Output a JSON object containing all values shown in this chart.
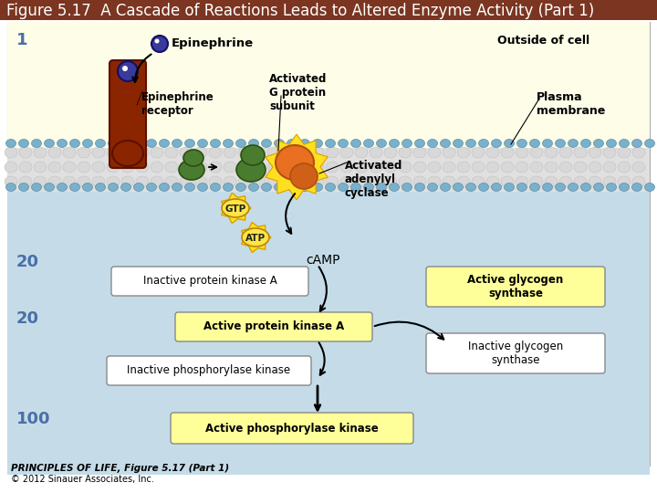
{
  "title": "Figure 5.17  A Cascade of Reactions Leads to Altered Enzyme Activity (Part 1)",
  "title_bg": "#7B3520",
  "title_color": "#FFFFFF",
  "title_fontsize": 12,
  "fig_bg": "#FFFFFF",
  "outside_bg": "#FDFDE8",
  "inside_bg": "#C5DCE8",
  "membrane_color": "#D0D0D0",
  "label_outside_cell": "Outside of cell",
  "label_plasma_membrane": "Plasma\nmembrane",
  "label_epinephrine": "Epinephrine",
  "label_ep_receptor": "Epinephrine\nreceptor",
  "label_activated_g": "Activated\nG protein\nsubunit",
  "label_activated_adenylyl": "Activated\nadenylyl\ncyclase",
  "label_gtp": "GTP",
  "label_atp": "ATP",
  "label_camp": "cAMP",
  "label_inactive_pka": "Inactive protein kinase A",
  "label_active_pka": "Active protein kinase A",
  "label_inactive_pk": "Inactive phosphorylase kinase",
  "label_active_pk": "Active phosphorylase kinase",
  "label_active_gs": "Active glycogen\nsynthase",
  "label_inactive_gs": "Inactive glycogen\nsynthase",
  "label_num_1": "1",
  "label_num_20a": "20",
  "label_num_20b": "20",
  "label_num_100": "100",
  "label_num_color": "#4A6FA8",
  "caption_line1": "PRINCIPLES OF LIFE, Figure 5.17 (Part 1)",
  "caption_line2": "© 2012 Sinauer Associates, Inc.",
  "yellow_box_color": "#FFFF99",
  "white_box_color": "#FFFFFF",
  "receptor_color": "#8B2500",
  "g_protein_color": "#4A7C2F",
  "adenylyl_color": "#E87020",
  "epinephrine_ball_color": "#3A3A9C",
  "gtp_color": "#FFD700",
  "atp_color": "#FFD700",
  "arrow_color": "#333333"
}
